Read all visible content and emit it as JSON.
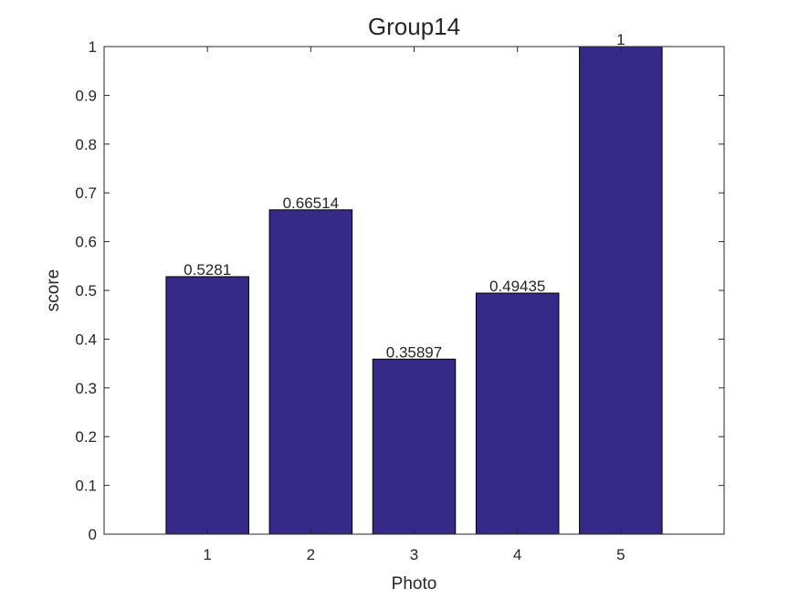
{
  "chart_data": {
    "type": "bar",
    "title": "Group14",
    "xlabel": "Photo",
    "ylabel": "score",
    "categories": [
      "1",
      "2",
      "3",
      "4",
      "5"
    ],
    "values": [
      0.5281,
      0.66514,
      0.35897,
      0.49435,
      1
    ],
    "value_labels": [
      "0.5281",
      "0.66514",
      "0.35897",
      "0.49435",
      "1"
    ],
    "xlim": [
      0,
      6
    ],
    "ylim": [
      0,
      1
    ],
    "yticks": [
      0,
      0.1,
      0.2,
      0.3,
      0.4,
      0.5,
      0.6,
      0.7,
      0.8,
      0.9,
      1
    ],
    "ytick_labels": [
      "0",
      "0.1",
      "0.2",
      "0.3",
      "0.4",
      "0.5",
      "0.6",
      "0.7",
      "0.8",
      "0.9",
      "1"
    ],
    "bar_color": "#352a87",
    "bar_edge_color": "#000000",
    "grid": false,
    "legend": false
  }
}
